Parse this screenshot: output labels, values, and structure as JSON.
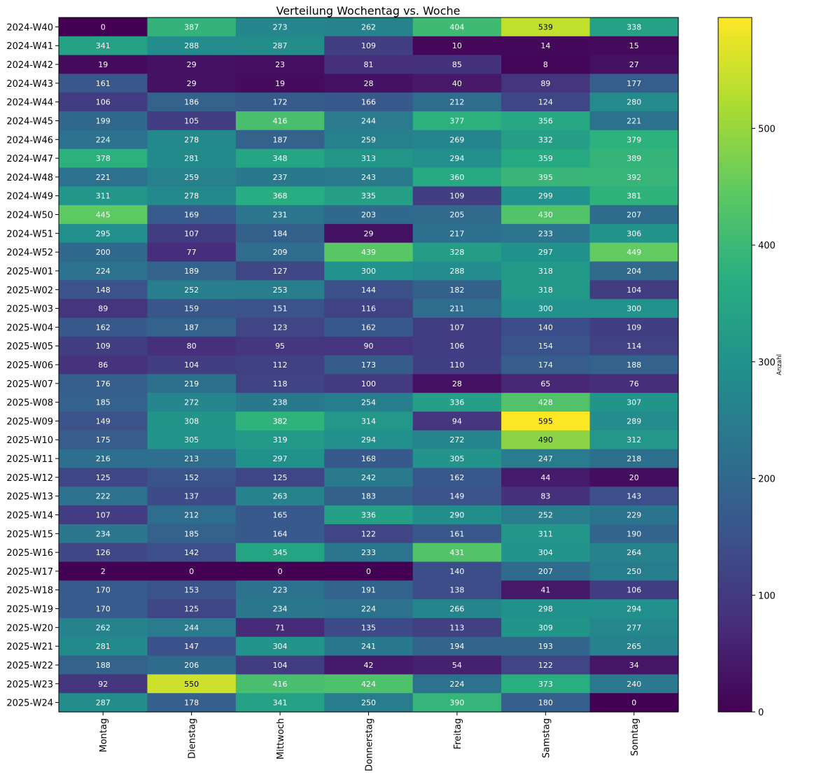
{
  "chart_data": {
    "type": "heatmap",
    "title": "Verteilung Wochentag vs. Woche",
    "xlabel": "",
    "ylabel": "",
    "colorbar_label": "Anzahl",
    "colormap": "viridis",
    "vmin": 0,
    "vmax": 595,
    "colorbar_ticks": [
      "0",
      "100",
      "200",
      "300",
      "400",
      "500"
    ],
    "x_categories": [
      "Montag",
      "Dienstag",
      "Mittwoch",
      "Donnerstag",
      "Freitag",
      "Samstag",
      "Sonntag"
    ],
    "y_categories": [
      "2024-W40",
      "2024-W41",
      "2024-W42",
      "2024-W43",
      "2024-W44",
      "2024-W45",
      "2024-W46",
      "2024-W47",
      "2024-W48",
      "2024-W49",
      "2024-W50",
      "2024-W51",
      "2024-W52",
      "2025-W01",
      "2025-W02",
      "2025-W03",
      "2025-W04",
      "2025-W05",
      "2025-W06",
      "2025-W07",
      "2025-W08",
      "2025-W09",
      "2025-W10",
      "2025-W11",
      "2025-W12",
      "2025-W13",
      "2025-W14",
      "2025-W15",
      "2025-W16",
      "2025-W17",
      "2025-W18",
      "2025-W19",
      "2025-W20",
      "2025-W21",
      "2025-W22",
      "2025-W23",
      "2025-W24"
    ],
    "values": [
      [
        0,
        387,
        273,
        262,
        404,
        539,
        338
      ],
      [
        341,
        288,
        287,
        109,
        10,
        14,
        15
      ],
      [
        19,
        29,
        23,
        81,
        85,
        8,
        27
      ],
      [
        161,
        29,
        19,
        28,
        40,
        89,
        177
      ],
      [
        106,
        186,
        172,
        166,
        212,
        124,
        280
      ],
      [
        199,
        105,
        416,
        244,
        377,
        356,
        221
      ],
      [
        224,
        278,
        187,
        259,
        269,
        332,
        379
      ],
      [
        378,
        281,
        348,
        313,
        294,
        359,
        389
      ],
      [
        221,
        259,
        237,
        243,
        360,
        395,
        392
      ],
      [
        311,
        278,
        368,
        335,
        109,
        299,
        381
      ],
      [
        445,
        169,
        231,
        203,
        205,
        430,
        207
      ],
      [
        295,
        107,
        184,
        29,
        217,
        233,
        306
      ],
      [
        200,
        77,
        209,
        439,
        328,
        297,
        449
      ],
      [
        224,
        189,
        127,
        300,
        288,
        318,
        204
      ],
      [
        148,
        252,
        253,
        144,
        182,
        318,
        104
      ],
      [
        89,
        159,
        151,
        116,
        211,
        300,
        300
      ],
      [
        162,
        187,
        123,
        162,
        107,
        140,
        109
      ],
      [
        109,
        80,
        95,
        90,
        106,
        154,
        114
      ],
      [
        86,
        104,
        112,
        173,
        110,
        174,
        188
      ],
      [
        176,
        219,
        118,
        100,
        28,
        65,
        76
      ],
      [
        185,
        272,
        238,
        254,
        336,
        428,
        307
      ],
      [
        149,
        308,
        382,
        314,
        94,
        595,
        289
      ],
      [
        175,
        305,
        319,
        294,
        272,
        490,
        312
      ],
      [
        216,
        213,
        297,
        168,
        305,
        247,
        218
      ],
      [
        125,
        152,
        125,
        242,
        162,
        44,
        20
      ],
      [
        222,
        137,
        263,
        183,
        149,
        83,
        143
      ],
      [
        107,
        212,
        165,
        336,
        290,
        252,
        229
      ],
      [
        234,
        185,
        164,
        122,
        161,
        311,
        190
      ],
      [
        126,
        142,
        345,
        233,
        431,
        304,
        264
      ],
      [
        2,
        0,
        0,
        0,
        140,
        207,
        250
      ],
      [
        170,
        153,
        223,
        191,
        138,
        41,
        106
      ],
      [
        170,
        125,
        234,
        224,
        266,
        298,
        294
      ],
      [
        262,
        244,
        71,
        135,
        113,
        309,
        277
      ],
      [
        281,
        147,
        304,
        241,
        194,
        193,
        265
      ],
      [
        188,
        206,
        104,
        42,
        54,
        122,
        34
      ],
      [
        92,
        550,
        416,
        424,
        224,
        373,
        240
      ],
      [
        287,
        178,
        341,
        250,
        390,
        180,
        0
      ]
    ]
  }
}
